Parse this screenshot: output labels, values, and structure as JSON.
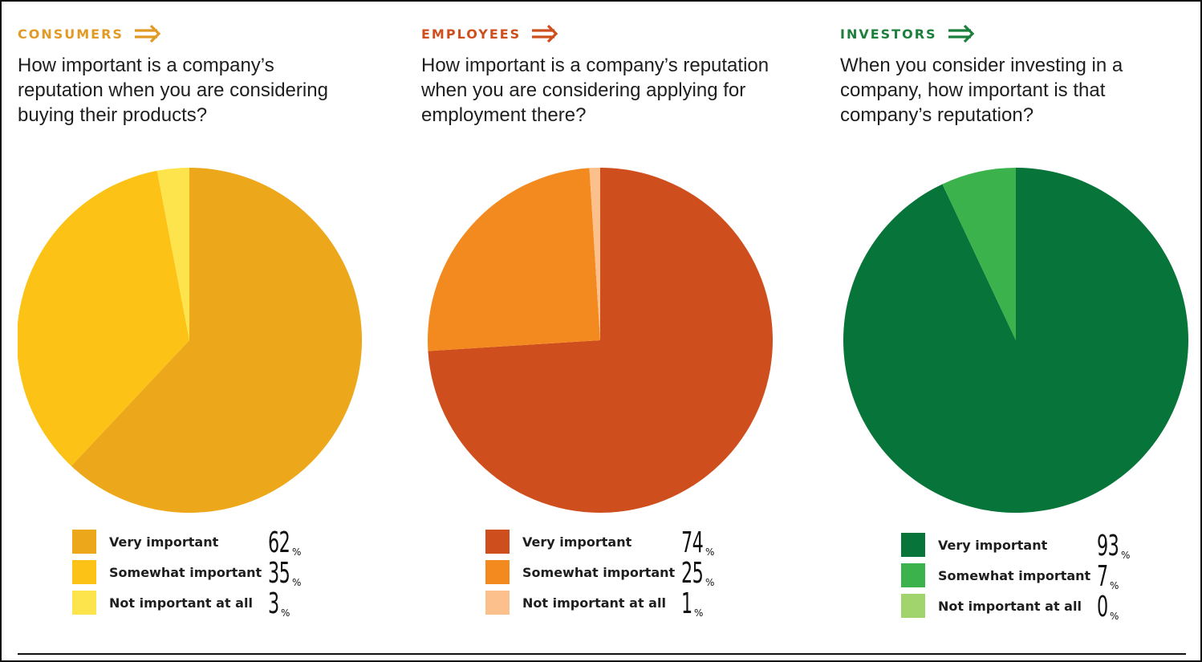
{
  "chart_data": [
    {
      "type": "pie",
      "group": "CONSUMERS",
      "title": "How important is a company’s reputation when you are considering buying their products?",
      "accent": "#E29A26",
      "slices": [
        {
          "label": "Very important",
          "value": 62,
          "color": "#ECA81A"
        },
        {
          "label": "Somewhat important",
          "value": 35,
          "color": "#FCC215"
        },
        {
          "label": "Not important at all",
          "value": 3,
          "color": "#FDE44C"
        }
      ],
      "unit": "%"
    },
    {
      "type": "pie",
      "group": "EMPLOYEES",
      "title": "How important is a company’s reputation when you are considering applying for employment there?",
      "accent": "#CF4E1D",
      "slices": [
        {
          "label": "Very important",
          "value": 74,
          "color": "#CF4E1D"
        },
        {
          "label": "Somewhat important",
          "value": 25,
          "color": "#F38A20"
        },
        {
          "label": "Not important at all",
          "value": 1,
          "color": "#FCC08C"
        }
      ],
      "unit": "%"
    },
    {
      "type": "pie",
      "group": "INVESTORS",
      "title": "When you consider investing in a company, how important is that company’s reputation?",
      "accent": "#1C7F3B",
      "slices": [
        {
          "label": "Very important",
          "value": 93,
          "color": "#07743A"
        },
        {
          "label": "Somewhat important",
          "value": 7,
          "color": "#3CB24D"
        },
        {
          "label": "Not important at all",
          "value": 0,
          "color": "#A1D46C"
        }
      ],
      "unit": "%"
    }
  ],
  "icons": {
    "group_arrow": "double-arrow-right-icon"
  }
}
